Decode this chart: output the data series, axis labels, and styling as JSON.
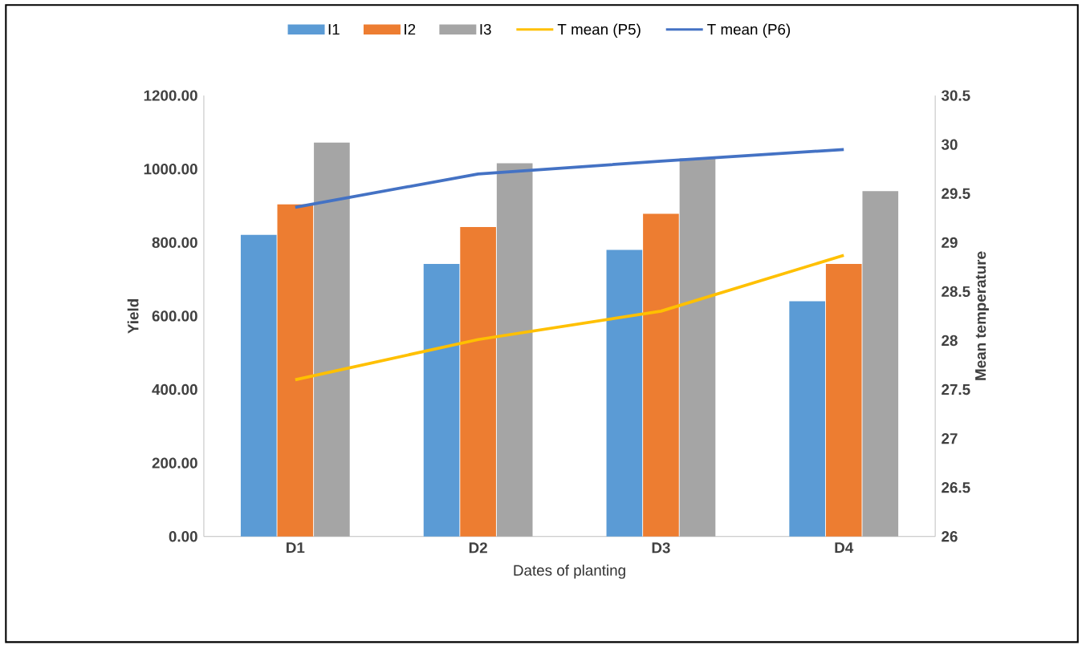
{
  "chart_data": {
    "type": "bar",
    "xlabel": "Dates of planting",
    "ylabel": "Yield",
    "y2label": "Mean temperature",
    "categories": [
      "D1",
      "D2",
      "D3",
      "D4"
    ],
    "series": [
      {
        "name": "I1",
        "color": "#5b9bd5",
        "values": [
          821,
          742,
          780,
          640
        ]
      },
      {
        "name": "I2",
        "color": "#ed7d31",
        "values": [
          904,
          842,
          878,
          742
        ]
      },
      {
        "name": "I3",
        "color": "#a5a5a5",
        "values": [
          1072,
          1016,
          1029,
          940
        ]
      },
      {
        "name": "T mean (P5)",
        "type": "line",
        "axis": "y2",
        "color": "#ffc000",
        "values": [
          27.6,
          28.01,
          28.3,
          28.87
        ]
      },
      {
        "name": "T mean (P6)",
        "type": "line",
        "axis": "y2",
        "color": "#4472c4",
        "values": [
          29.36,
          29.7,
          29.83,
          29.95
        ]
      }
    ],
    "ylim": [
      0,
      1200
    ],
    "yticks": [
      {
        "value": 0,
        "label": "0.00"
      },
      {
        "value": 200,
        "label": "200.00"
      },
      {
        "value": 400,
        "label": "400.00"
      },
      {
        "value": 600,
        "label": "600.00"
      },
      {
        "value": 800,
        "label": "800.00"
      },
      {
        "value": 1000,
        "label": "1000.00"
      },
      {
        "value": 1200,
        "label": "1200.00"
      }
    ],
    "y2lim": [
      26,
      30.5
    ],
    "y2ticks": [
      26,
      26.5,
      27,
      27.5,
      28,
      28.5,
      29,
      29.5,
      30,
      30.5
    ],
    "legend": "top",
    "grid": false
  }
}
